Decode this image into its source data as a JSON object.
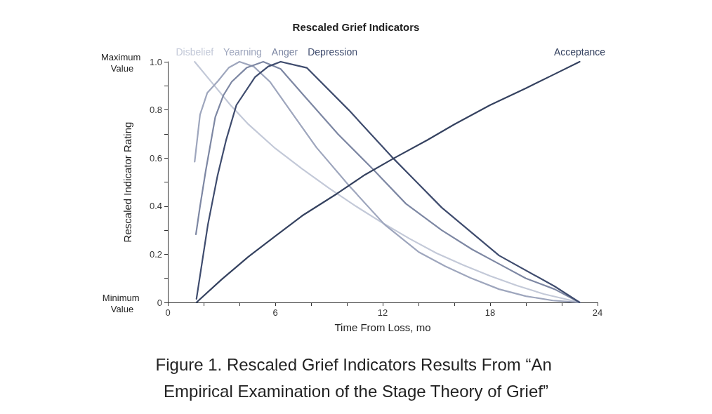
{
  "chart_data": {
    "type": "line",
    "title": "Rescaled Grief Indicators",
    "xlabel": "Time From Loss, mo",
    "ylabel": "Rescaled Indicator Rating",
    "xlim": [
      0,
      24
    ],
    "xticks": [
      0,
      {
        "value": 2,
        "label": null
      },
      {
        "value": 4,
        "label": null
      },
      6,
      {
        "value": 8,
        "label": null
      },
      {
        "value": 10,
        "label": null
      },
      12,
      {
        "value": 14,
        "label": null
      },
      {
        "value": 16,
        "label": null
      },
      18,
      {
        "value": 20,
        "label": null
      },
      {
        "value": 22,
        "label": null
      },
      24
    ],
    "ylim": [
      0,
      1
    ],
    "yticks": [
      0,
      {
        "value": 0.1,
        "label": null
      },
      0.2,
      {
        "value": 0.3,
        "label": null
      },
      0.4,
      {
        "value": 0.5,
        "label": null
      },
      0.6,
      {
        "value": 0.7,
        "label": null
      },
      0.8,
      {
        "value": 0.9,
        "label": null
      },
      {
        "value": 1,
        "label": "1.0"
      }
    ],
    "grid": false,
    "legend": false,
    "marker": "none",
    "line_style": "solid",
    "series": [
      {
        "name": "Disbelief",
        "color": "#c3c9d8",
        "x": [
          1.5,
          2.5,
          3.5,
          4.5,
          6,
          7.5,
          9,
          10.5,
          12,
          13.5,
          15,
          16.5,
          18,
          19.5,
          21,
          23
        ],
        "values": [
          1.0,
          0.91,
          0.82,
          0.74,
          0.64,
          0.555,
          0.475,
          0.4,
          0.33,
          0.265,
          0.205,
          0.155,
          0.11,
          0.07,
          0.035,
          0
        ]
      },
      {
        "name": "Yearning",
        "color": "#9ea6bd",
        "x": [
          1.5,
          1.8,
          2.2,
          2.8,
          3.4,
          4.0,
          4.8,
          5.7,
          7,
          8.3,
          10.1,
          12.1,
          14,
          15.5,
          16.9,
          18.5,
          20,
          21.5,
          23
        ],
        "values": [
          0.585,
          0.78,
          0.87,
          0.92,
          0.975,
          1.0,
          0.98,
          0.917,
          0.78,
          0.644,
          0.487,
          0.324,
          0.21,
          0.15,
          0.102,
          0.055,
          0.026,
          0.008,
          0
        ]
      },
      {
        "name": "Anger",
        "color": "#7d87a3",
        "x": [
          1.57,
          1.8,
          2.12,
          2.65,
          3.1,
          3.57,
          4.4,
          5.33,
          6.3,
          7.5,
          9.5,
          11.5,
          13.3,
          15.3,
          17,
          18.5,
          20,
          21.6,
          23
        ],
        "values": [
          0.283,
          0.4,
          0.548,
          0.77,
          0.86,
          0.917,
          0.975,
          1.0,
          0.97,
          0.868,
          0.7,
          0.55,
          0.41,
          0.3,
          0.22,
          0.16,
          0.1,
          0.055,
          0
        ]
      },
      {
        "name": "Depression",
        "color": "#3f4c6e",
        "x": [
          1.6,
          2.24,
          2.78,
          3.25,
          3.83,
          4.87,
          5.6,
          6.3,
          7.76,
          10.1,
          12.6,
          15.3,
          18.5,
          21.6,
          23
        ],
        "values": [
          0.015,
          0.324,
          0.528,
          0.673,
          0.82,
          0.936,
          0.98,
          1.0,
          0.975,
          0.8,
          0.598,
          0.394,
          0.195,
          0.067,
          0
        ]
      },
      {
        "name": "Acceptance",
        "color": "#34415f",
        "x": [
          1.6,
          3,
          4.5,
          5.92,
          7.5,
          9.45,
          11,
          12.6,
          14.5,
          16,
          18,
          20,
          21.5,
          23
        ],
        "values": [
          0,
          0.095,
          0.19,
          0.271,
          0.36,
          0.452,
          0.53,
          0.598,
          0.675,
          0.74,
          0.82,
          0.89,
          0.945,
          1.0
        ]
      }
    ],
    "annotations": [
      "Maximum Value",
      "Minimum Value",
      "Figure 1. Rescaled Grief Indicators Results From “An Empirical Examination of the Stage Theory of Grief”"
    ]
  }
}
